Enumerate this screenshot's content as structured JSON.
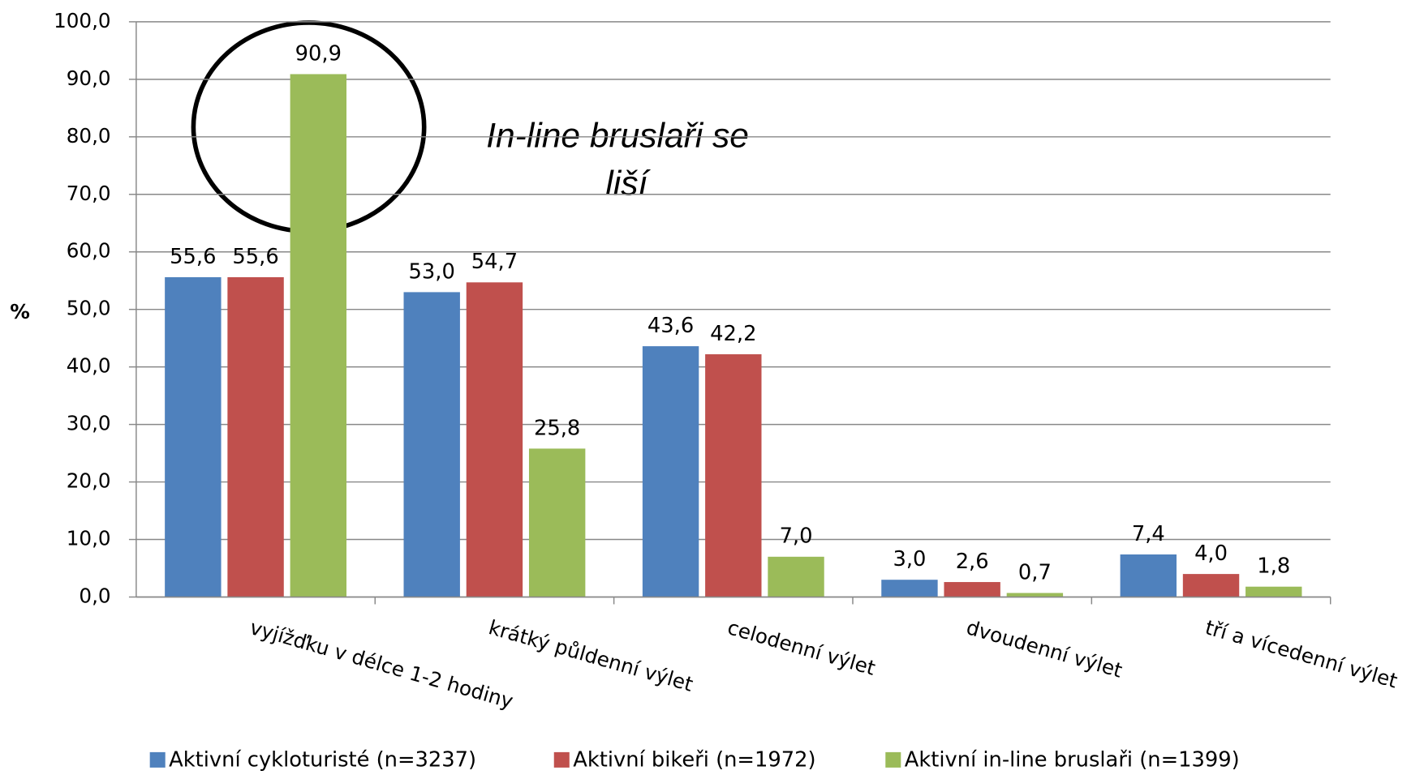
{
  "chart_data": {
    "type": "bar",
    "categories": [
      "vyjížďku v délce 1-2 hodiny",
      "krátký půldenní výlet",
      "celodenní výlet",
      "dvoudenní výlet",
      "tří a vícedenní výlet"
    ],
    "series": [
      {
        "name": "Aktivní cykloturisté (n=3237)",
        "color": "#4f81bd",
        "values": [
          55.6,
          53.0,
          43.6,
          3.0,
          7.4
        ],
        "value_labels": [
          "55,6",
          "53,0",
          "43,6",
          "3,0",
          "7,4"
        ]
      },
      {
        "name": "Aktivní bikeři (n=1972)",
        "color": "#c0504d",
        "values": [
          55.6,
          54.7,
          42.2,
          2.6,
          4.0
        ],
        "value_labels": [
          "55,6",
          "54,7",
          "42,2",
          "2,6",
          "4,0"
        ]
      },
      {
        "name": "Aktivní in-line bruslaři (n=1399)",
        "color": "#9bbb59",
        "values": [
          90.9,
          25.8,
          7.0,
          0.7,
          1.8
        ],
        "value_labels": [
          "90,9",
          "25,8",
          "7,0",
          "0,7",
          "1,8"
        ]
      }
    ],
    "y_label": "%",
    "ylim": [
      0,
      100
    ],
    "yticks": [
      {
        "value": 0,
        "label": "0,0"
      },
      {
        "value": 10,
        "label": "10,0"
      },
      {
        "value": 20,
        "label": "20,0"
      },
      {
        "value": 30,
        "label": "30,0"
      },
      {
        "value": 40,
        "label": "40,0"
      },
      {
        "value": 50,
        "label": "50,0"
      },
      {
        "value": 60,
        "label": "60,0"
      },
      {
        "value": 70,
        "label": "70,0"
      },
      {
        "value": 80,
        "label": "80,0"
      },
      {
        "value": 90,
        "label": "90,0"
      },
      {
        "value": 100,
        "label": "100,0"
      }
    ],
    "grid": true,
    "legend": "bottom",
    "annotation": [
      "In-line bruslaři se",
      "liší"
    ]
  }
}
